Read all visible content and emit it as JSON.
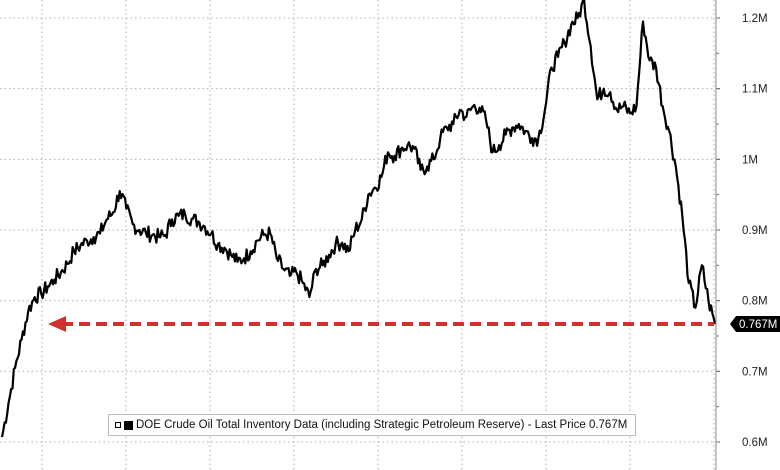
{
  "chart_data": {
    "type": "line",
    "title": "",
    "xlabel": "",
    "ylabel": "",
    "y_unit": "M",
    "ylim": [
      0.58,
      1.23
    ],
    "y_ticks": [
      {
        "value": 1.2,
        "label": "1.2M"
      },
      {
        "value": 1.1,
        "label": "1.1M"
      },
      {
        "value": 1.0,
        "label": "1M"
      },
      {
        "value": 0.9,
        "label": "0.9M"
      },
      {
        "value": 0.8,
        "label": "0.8M"
      },
      {
        "value": 0.7,
        "label": "0.7M"
      },
      {
        "value": 0.6,
        "label": "0.6M"
      }
    ],
    "x_gridlines": 9,
    "grid": true,
    "legend": "bottom-left",
    "series": [
      {
        "name": "DOE Crude Oil Total Inventory Data (including Strategic Petroleum Reserve)",
        "color": "#000000",
        "values": [
          0.607,
          0.655,
          0.705,
          0.745,
          0.785,
          0.805,
          0.81,
          0.82,
          0.83,
          0.84,
          0.852,
          0.87,
          0.878,
          0.885,
          0.89,
          0.895,
          0.915,
          0.925,
          0.955,
          0.93,
          0.908,
          0.9,
          0.896,
          0.893,
          0.89,
          0.893,
          0.915,
          0.92,
          0.922,
          0.916,
          0.912,
          0.905,
          0.895,
          0.88,
          0.875,
          0.865,
          0.855,
          0.86,
          0.87,
          0.885,
          0.893,
          0.895,
          0.86,
          0.845,
          0.835,
          0.84,
          0.825,
          0.805,
          0.845,
          0.85,
          0.865,
          0.88,
          0.882,
          0.87,
          0.9,
          0.915,
          0.95,
          0.96,
          0.975,
          1.01,
          1.005,
          1.015,
          1.02,
          1.015,
          0.985,
          0.99,
          1.0,
          1.03,
          1.045,
          1.05,
          1.07,
          1.06,
          1.075,
          1.073,
          1.055,
          1.01,
          1.02,
          1.035,
          1.045,
          1.05,
          1.04,
          1.03,
          1.03,
          1.07,
          1.13,
          1.145,
          1.165,
          1.19,
          1.2,
          1.225,
          1.16,
          1.085,
          1.1,
          1.095,
          1.07,
          1.075,
          1.065,
          1.075,
          1.195,
          1.14,
          1.13,
          1.075,
          1.04,
          0.99,
          0.92,
          0.825,
          0.79,
          0.85,
          0.8,
          0.767
        ]
      }
    ],
    "annotations": [
      {
        "type": "arrow",
        "from_value": 0.767,
        "direction": "left",
        "color": "#d32f2f",
        "style": "dashed"
      }
    ],
    "last_price_tag": "0.767M",
    "last_value": 0.767
  },
  "legend": {
    "series_label": "DOE Crude Oil Total Inventory Data (including Strategic Petroleum Reserve) - Last Price 0.767M"
  },
  "colors": {
    "line": "#000000",
    "arrow": "#d32f2f",
    "grid": "#b0b0b0",
    "price_tag_bg": "#000000",
    "price_tag_text": "#ffffff"
  }
}
